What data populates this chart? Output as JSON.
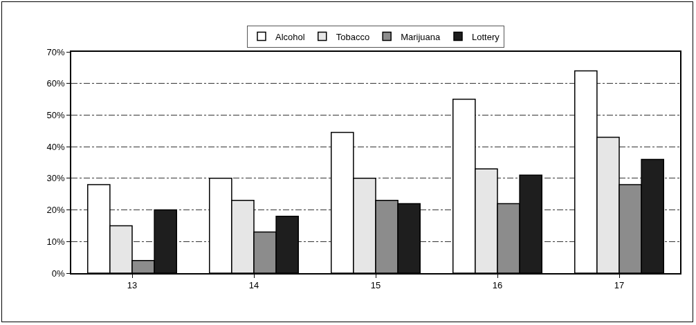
{
  "chart_data": {
    "type": "bar",
    "categories": [
      "13",
      "14",
      "15",
      "16",
      "17"
    ],
    "series": [
      {
        "name": "Alcohol",
        "color": "#ffffff",
        "values": [
          28,
          30,
          44.5,
          55,
          64
        ]
      },
      {
        "name": "Tobacco",
        "color": "#e6e6e6",
        "values": [
          15,
          23,
          30,
          33,
          43
        ]
      },
      {
        "name": "Marijuana",
        "color": "#8c8c8c",
        "values": [
          4,
          13,
          23,
          22,
          28
        ]
      },
      {
        "name": "Lottery",
        "color": "#1e1e1e",
        "values": [
          20,
          18,
          22,
          31,
          36
        ]
      }
    ],
    "ylim": [
      0,
      70
    ],
    "yticks": [
      {
        "value": 0,
        "label": "0%"
      },
      {
        "value": 10,
        "label": "10%"
      },
      {
        "value": 20,
        "label": "20%"
      },
      {
        "value": 30,
        "label": "30%"
      },
      {
        "value": 40,
        "label": "40%"
      },
      {
        "value": 50,
        "label": "50%"
      },
      {
        "value": 60,
        "label": "60%"
      },
      {
        "value": 70,
        "label": "70%"
      }
    ],
    "grid": "y",
    "legend": "top"
  }
}
